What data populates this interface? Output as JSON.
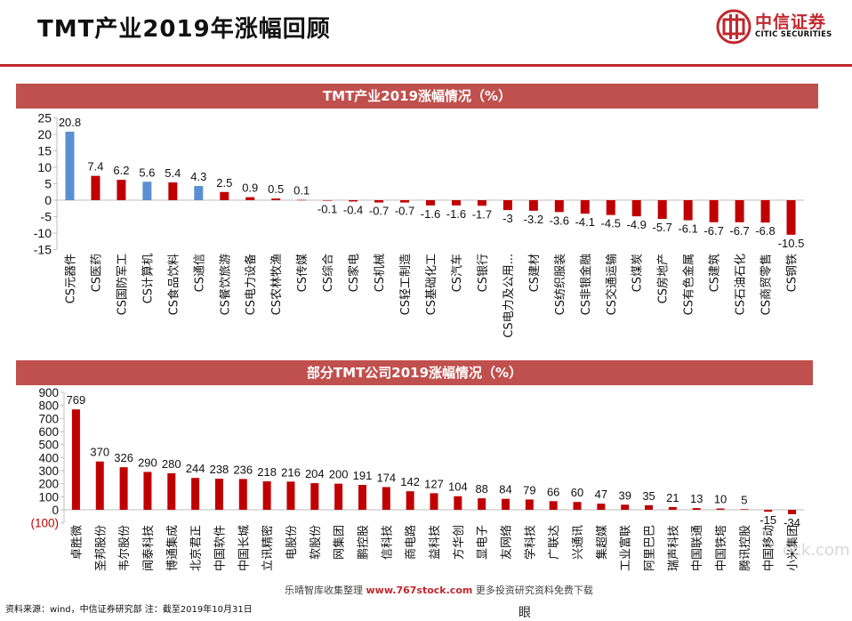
{
  "header": {
    "title": "TMT产业2019年涨幅回顾",
    "logo_cn": "中信证券",
    "logo_en": "CITIC SECURITIES"
  },
  "colors": {
    "accent_red": "#c00000",
    "highlight_blue": "#5b8fd1",
    "banner": "#c0504d"
  },
  "chart_data": [
    {
      "type": "bar",
      "title": "TMT产业2019涨幅情况（%）",
      "categories": [
        "CS元器件",
        "CS医药",
        "CS国防军工",
        "CS计算机",
        "CS食品饮料",
        "CS通信",
        "CS餐饮旅游",
        "CS电力设备",
        "CS农林牧渔",
        "CS传媒",
        "CS综合",
        "CS家电",
        "CS机械",
        "CS轻工制造",
        "CS基础化工",
        "CS汽车",
        "CS银行",
        "CS电力及公用...",
        "CS建材",
        "CS纺织服装",
        "CS非银金融",
        "CS交通运输",
        "CS煤炭",
        "CS房地产",
        "CS有色金属",
        "CS建筑",
        "CS石油石化",
        "CS商贸零售",
        "CS钢铁"
      ],
      "values": [
        20.8,
        7.4,
        6.2,
        5.6,
        5.4,
        4.3,
        2.5,
        0.9,
        0.5,
        0.1,
        -0.1,
        -0.4,
        -0.7,
        -0.7,
        -1.6,
        -1.6,
        -1.7,
        -3,
        -3.2,
        -3.6,
        -4.1,
        -4.5,
        -4.9,
        -5.7,
        -6.1,
        -6.7,
        -6.7,
        -6.8,
        -10.5
      ],
      "value_labels": [
        "20.8",
        "7.4",
        "6.2",
        "5.6",
        "5.4",
        "4.3",
        "2.5",
        "0.9",
        "0.5",
        "0.1",
        "-0.1",
        "-0.4",
        "-0.7",
        "-0.7",
        "-1.6",
        "-1.6",
        "-1.7",
        "-3",
        "-3.2",
        "-3.6",
        "-4.1",
        "-4.5",
        "-4.9",
        "-5.7",
        "-6.1",
        "-6.7",
        "-6.7",
        "-6.8",
        "-10.5"
      ],
      "highlight_indices": [
        0,
        3,
        5
      ],
      "yticks": [
        25,
        20,
        15,
        10,
        5,
        0,
        -5,
        -10,
        -15
      ],
      "ylim": [
        -15,
        25
      ],
      "grid": false
    },
    {
      "type": "bar",
      "title": "部分TMT公司2019涨幅情况（%）",
      "categories": [
        "卓胜微",
        "圣邦股份",
        "韦尔股份",
        "闻泰科技",
        "博通集成",
        "北京君正",
        "中国软件",
        "中国长城",
        "立讯精密",
        "电股份",
        "软股份",
        "网集团",
        "鹏控股",
        "信科技",
        "商电路",
        "益科技",
        "方华创",
        "显电子",
        "友网络",
        "学科技",
        "广联达",
        "兴通讯",
        "集超媒",
        "工业富联",
        "阿里巴巴",
        "瑞声科技",
        "中国联通",
        "中国铁塔",
        "腾讯控股",
        "中国移动",
        "小米集团"
      ],
      "values": [
        769,
        370,
        326,
        290,
        280,
        244,
        238,
        236,
        218,
        216,
        204,
        200,
        191,
        174,
        142,
        127,
        104,
        88,
        84,
        79,
        66,
        60,
        47,
        39,
        35,
        21,
        13,
        10,
        5,
        -15,
        -34
      ],
      "value_labels": [
        "769",
        "370",
        "326",
        "290",
        "280",
        "244",
        "238",
        "236",
        "218",
        "216",
        "204",
        "200",
        "191",
        "174",
        "142",
        "127",
        "104",
        "88",
        "84",
        "79",
        "66",
        "60",
        "47",
        "39",
        "35",
        "21",
        "13",
        "10",
        "5",
        "-15",
        "-34"
      ],
      "yticks": [
        "900",
        "800",
        "700",
        "600",
        "500",
        "400",
        "300",
        "200",
        "100",
        "0",
        "(100)"
      ],
      "ylim": [
        -100,
        900
      ],
      "grid": false
    }
  ],
  "footer": {
    "source_note": "资料来源：wind，中信证券研究部  注：截至2019年10月31日",
    "watermark_prefix": "乐晴智库收集整理 ",
    "watermark_site": "www.767stock.com",
    "watermark_suffix": " 更多投资研究资料免费下载",
    "watermark_corner": "ock.com",
    "stray_char": "眼"
  }
}
